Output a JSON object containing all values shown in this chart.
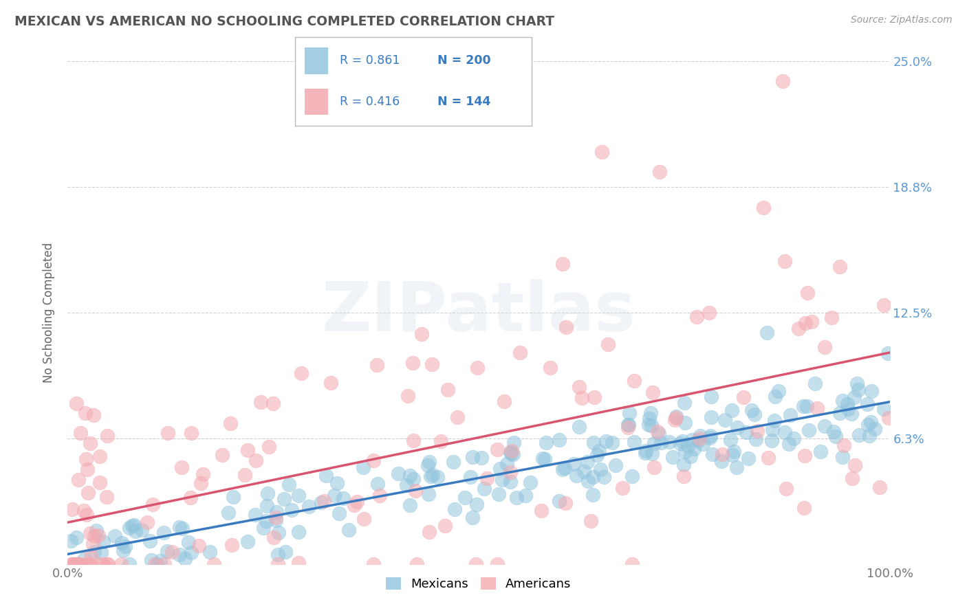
{
  "title": "MEXICAN VS AMERICAN NO SCHOOLING COMPLETED CORRELATION CHART",
  "source_text": "Source: ZipAtlas.com",
  "ylabel": "No Schooling Completed",
  "watermark": "ZIPatlas",
  "blue_R": 0.861,
  "blue_N": 200,
  "pink_R": 0.416,
  "pink_N": 144,
  "x_min": 0.0,
  "x_max": 1.0,
  "y_min": 0.0,
  "y_max": 0.25,
  "yticks": [
    0.0,
    0.0625,
    0.125,
    0.1875,
    0.25
  ],
  "ytick_labels": [
    "",
    "6.3%",
    "12.5%",
    "18.8%",
    "25.0%"
  ],
  "xtick_labels": [
    "0.0%",
    "100.0%"
  ],
  "legend_labels": [
    "Mexicans",
    "Americans"
  ],
  "blue_color": "#92c5de",
  "pink_color": "#f4a9b0",
  "blue_line_color": "#3a7bbf",
  "pink_line_color": "#d9546e",
  "title_color": "#555555",
  "tick_label_color": "#5b9bd5",
  "background_color": "#ffffff",
  "grid_color": "#d0d0d0"
}
